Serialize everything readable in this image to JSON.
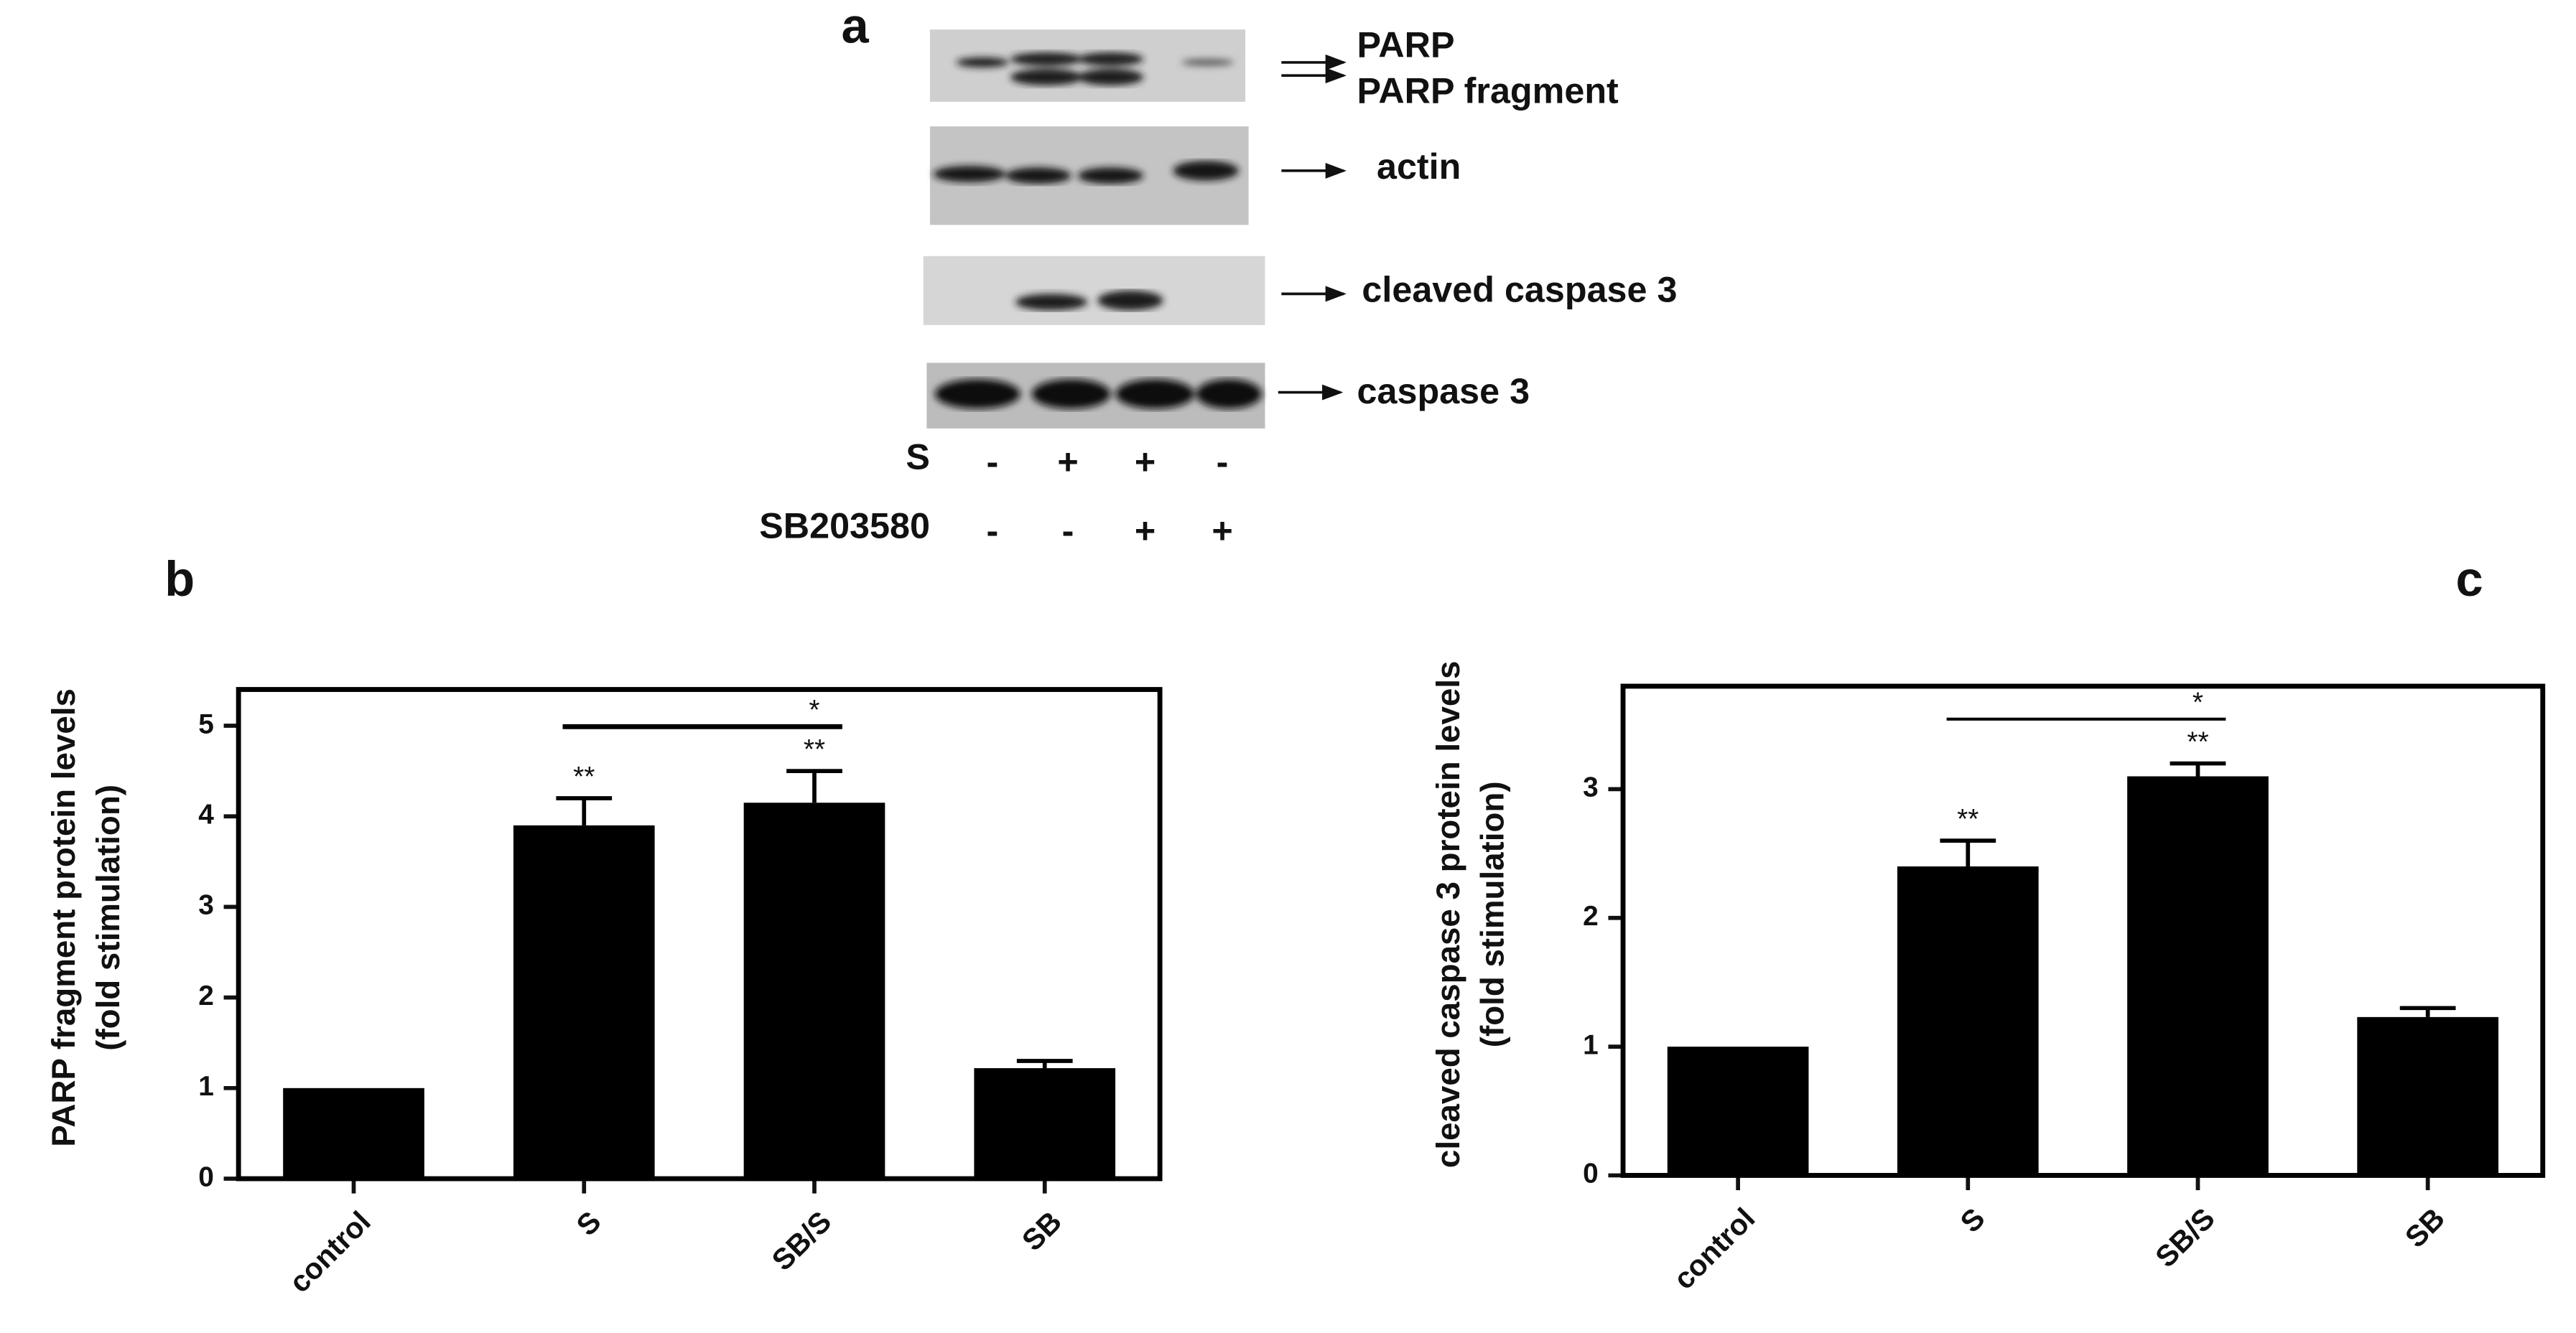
{
  "blot": {
    "panel_label": "a",
    "bands": [
      "PARP",
      "PARP fragment",
      "actin",
      "cleaved caspase 3",
      "caspase 3"
    ],
    "conditions": [
      {
        "name": "S",
        "signs": [
          "-",
          "+",
          "+",
          "-"
        ]
      },
      {
        "name": "SB203580",
        "signs": [
          "-",
          "-",
          "+",
          "+"
        ]
      }
    ]
  },
  "chart_data": [
    {
      "type": "bar",
      "panel_label": "b",
      "ylabel": [
        "PARP fragment protein levels",
        "(fold stimulation)"
      ],
      "categories": [
        "control",
        "S",
        "SB/S",
        "SB"
      ],
      "values": [
        1.0,
        3.9,
        4.15,
        1.22
      ],
      "errors": [
        0,
        0.3,
        0.35,
        0.08
      ],
      "significance_labels": [
        null,
        "**",
        "**",
        null
      ],
      "comparison": {
        "categories": [
          "S",
          "SB/S"
        ],
        "label": "*"
      },
      "color": "#000000",
      "ylim": [
        0,
        5.4
      ],
      "yticks": [
        0,
        1,
        2,
        3,
        4,
        5
      ]
    },
    {
      "type": "bar",
      "panel_label": "c",
      "ylabel": [
        "cleaved caspase 3 protein levels",
        "(fold stimulation)"
      ],
      "categories": [
        "control",
        "S",
        "SB/S",
        "SB"
      ],
      "values": [
        1.0,
        2.4,
        3.1,
        1.23
      ],
      "errors": [
        0,
        0.2,
        0.1,
        0.07
      ],
      "significance_labels": [
        null,
        "**",
        "**",
        null
      ],
      "comparison": {
        "categories": [
          "S",
          "SB/S"
        ],
        "label": "*"
      },
      "color": "#000000",
      "ylim": [
        0,
        3.8
      ],
      "yticks": [
        0,
        1,
        2,
        3
      ]
    }
  ]
}
